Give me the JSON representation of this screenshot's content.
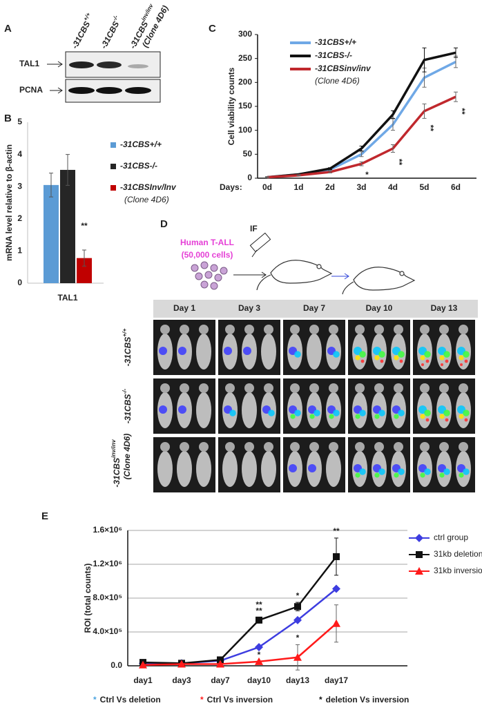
{
  "panel_labels": [
    "A",
    "B",
    "C",
    "D",
    "E"
  ],
  "blot": {
    "rows": [
      "TAL1",
      "PCNA"
    ],
    "lanes": [
      {
        "base": "-31CBS",
        "sup": "+/+"
      },
      {
        "base": "-31CBS",
        "sup": "-/-"
      },
      {
        "base": "-31CBS",
        "sup": "inv/inv",
        "note": "(Clone 4D6)"
      }
    ]
  },
  "chart_data": [
    {
      "type": "bar",
      "y_label": "mRNA level relative to β-actin",
      "categories": [
        "TAL1"
      ],
      "series": [
        {
          "name": "-31CBS+/+",
          "color": "#5b9bd5",
          "values": [
            3.05
          ],
          "errors": [
            0.37
          ]
        },
        {
          "name": "-31CBS-/-",
          "color": "#262626",
          "values": [
            3.52
          ],
          "errors": [
            0.48
          ]
        },
        {
          "name": "-31CBSInv/Inv",
          "name_note": "(Clone 4D6)",
          "color": "#c00000",
          "values": [
            0.78
          ],
          "errors": [
            0.25
          ]
        }
      ],
      "ylim": [
        0,
        5
      ],
      "yticks": [
        0,
        1,
        2,
        3,
        4,
        5
      ],
      "annotations": [
        {
          "text": "**",
          "series": 2,
          "category": "TAL1",
          "color": "#262626"
        }
      ]
    },
    {
      "type": "line",
      "y_label": "Cell viability counts",
      "x_label": "Days:",
      "categories": [
        "0d",
        "1d",
        "2d",
        "3d",
        "4d",
        "5d",
        "6d"
      ],
      "series": [
        {
          "name": "-31CBS+/+",
          "color": "#6fa8e6",
          "values": [
            2,
            8,
            18,
            50,
            112,
            210,
            243
          ],
          "errors": [
            1,
            1,
            2,
            5,
            12,
            20,
            12
          ]
        },
        {
          "name": "-31CBS-/-",
          "color": "#111111",
          "values": [
            2,
            8,
            20,
            62,
            133,
            247,
            262
          ],
          "errors": [
            1,
            1,
            2,
            5,
            8,
            25,
            10
          ]
        },
        {
          "name": "-31CBSinv/inv",
          "name_note": "(Clone 4D6)",
          "color": "#c0282d",
          "values": [
            2,
            6,
            13,
            30,
            62,
            140,
            170
          ],
          "errors": [
            1,
            1,
            2,
            4,
            8,
            15,
            10
          ]
        }
      ],
      "ylim": [
        0,
        300
      ],
      "yticks": [
        0,
        50,
        100,
        150,
        200,
        250,
        300
      ],
      "annotations": [
        {
          "text": "*",
          "series": 2,
          "category": "3d",
          "color": "#111111"
        },
        {
          "text": "**",
          "series": 2,
          "category": "4d",
          "color": "#111111"
        },
        {
          "text": "**",
          "series": 2,
          "category": "5d",
          "color": "#111111"
        },
        {
          "text": "**",
          "series": 2,
          "category": "6d",
          "color": "#111111"
        }
      ]
    },
    {
      "type": "line",
      "y_label": "ROI (total counts)",
      "grid": true,
      "categories": [
        "day1",
        "day3",
        "day7",
        "day10",
        "day13",
        "day17"
      ],
      "series": [
        {
          "name": "ctrl group",
          "color": "#3d3de0",
          "marker": "diamond",
          "values": [
            30000,
            30000,
            60000,
            220000,
            540000,
            910000
          ]
        },
        {
          "name": "31kb deletion",
          "color": "#111111",
          "marker": "square",
          "values": [
            40000,
            30000,
            70000,
            540000,
            700000,
            1290000
          ],
          "errors": [
            0,
            0,
            0,
            30000,
            50000,
            220000
          ]
        },
        {
          "name": "31kb inversion",
          "color": "#ff1a1a",
          "marker": "triangle",
          "values": [
            10000,
            20000,
            20000,
            50000,
            100000,
            500000
          ],
          "errors": [
            0,
            0,
            0,
            0,
            150000,
            220000
          ]
        }
      ],
      "ylim": [
        0,
        1600000
      ],
      "yticks": [
        {
          "value": 0,
          "label": "0.0"
        },
        {
          "value": 400000,
          "label": "4.0×10⁵"
        },
        {
          "value": 800000,
          "label": "8.0×10⁵"
        },
        {
          "value": 1200000,
          "label": "1.2×10⁶"
        },
        {
          "value": 1600000,
          "label": "1.6×10⁶"
        }
      ],
      "annotations": [
        {
          "text": "**",
          "series": 1,
          "category": "day10",
          "color": "#111111"
        },
        {
          "text": "**",
          "series": 1,
          "category": "day10",
          "color": "#4aa3df"
        },
        {
          "text": "*",
          "series": 2,
          "category": "day10",
          "color": "#ff1a1a"
        },
        {
          "text": "*",
          "series": 1,
          "category": "day13",
          "color": "#111111"
        },
        {
          "text": "*",
          "series": 2,
          "category": "day13",
          "color": "#ff1a1a"
        },
        {
          "text": "**",
          "series": 1,
          "category": "day17",
          "color": "#111111"
        }
      ]
    }
  ],
  "diagram": {
    "cells_title": "Human T-ALL",
    "cells_count": "(50,000 cells)",
    "injection": "IF",
    "days": [
      "Day 1",
      "Day 3",
      "Day 7",
      "Day 10",
      "Day 13"
    ]
  },
  "footnote": [
    {
      "marker": "*",
      "color": "#4aa3df",
      "text": "Ctrl Vs deletion"
    },
    {
      "marker": "*",
      "color": "#ff1a1a",
      "text": "Ctrl Vs inversion"
    },
    {
      "marker": "*",
      "color": "#111111",
      "text": "deletion Vs inversion"
    }
  ]
}
